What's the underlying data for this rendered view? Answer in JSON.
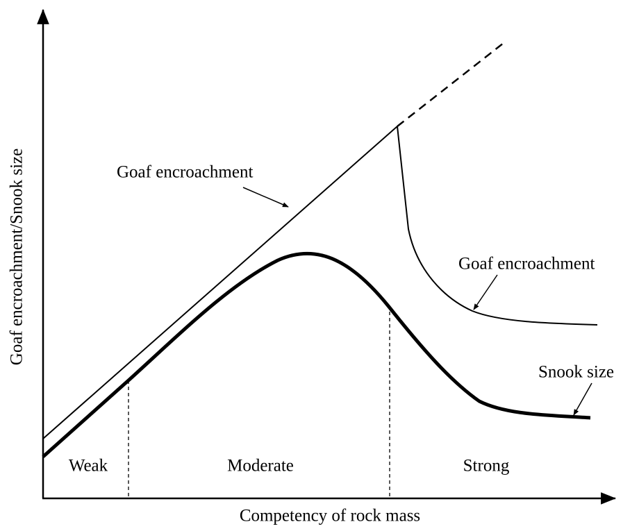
{
  "axes": {
    "y_label": "Goaf encroachment/Snook size",
    "x_label": "Competency of rock mass"
  },
  "curve_labels": {
    "goaf_encroachment_left": "Goaf encroachment",
    "goaf_encroachment_right": "Goaf encroachment",
    "snook_size": "Snook size"
  },
  "regions": [
    "Weak",
    "Moderate",
    "Strong"
  ]
}
